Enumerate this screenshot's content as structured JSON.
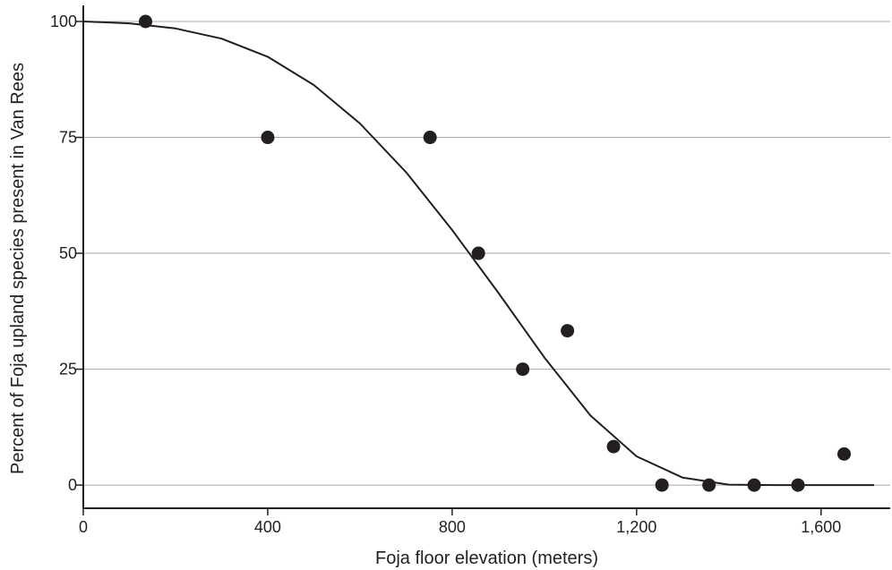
{
  "chart_data": {
    "type": "scatter",
    "xlabel": "Foja floor elevation (meters)",
    "ylabel": "Percent of Foja upland species present in Van Rees",
    "xlim": [
      0,
      1750
    ],
    "ylim": [
      -5,
      100
    ],
    "x_ticks": [
      {
        "value": 0,
        "label": "0"
      },
      {
        "value": 400,
        "label": "400"
      },
      {
        "value": 800,
        "label": "800"
      },
      {
        "value": 1200,
        "label": "1,200"
      },
      {
        "value": 1600,
        "label": "1,600"
      }
    ],
    "y_ticks": [
      {
        "value": 0,
        "label": "0"
      },
      {
        "value": 25,
        "label": "25"
      },
      {
        "value": 50,
        "label": "50"
      },
      {
        "value": 75,
        "label": "75"
      },
      {
        "value": 100,
        "label": "100"
      }
    ],
    "grid": "horizontal",
    "points": [
      {
        "x": 135,
        "y": 100
      },
      {
        "x": 400,
        "y": 75
      },
      {
        "x": 752,
        "y": 75
      },
      {
        "x": 857,
        "y": 50
      },
      {
        "x": 953,
        "y": 25
      },
      {
        "x": 1050,
        "y": 33.3
      },
      {
        "x": 1150,
        "y": 8.3
      },
      {
        "x": 1255,
        "y": 0
      },
      {
        "x": 1357,
        "y": 0
      },
      {
        "x": 1455,
        "y": 0
      },
      {
        "x": 1550,
        "y": 0
      },
      {
        "x": 1650,
        "y": 6.7
      }
    ],
    "fit_curve": {
      "x": [
        0,
        100,
        200,
        300,
        400,
        500,
        600,
        700,
        800,
        900,
        1000,
        1100,
        1200,
        1300,
        1400,
        1500,
        1600,
        1715
      ],
      "y": [
        100,
        99.6,
        98.5,
        96.3,
        92.4,
        86.3,
        78,
        67.5,
        55,
        41.5,
        27.5,
        15,
        6.2,
        1.6,
        0.1,
        0,
        0,
        0
      ]
    },
    "colors": {
      "marker": "#231f20",
      "line": "#231f20",
      "grid": "#a7a9ac",
      "axis": "#231f20"
    }
  }
}
